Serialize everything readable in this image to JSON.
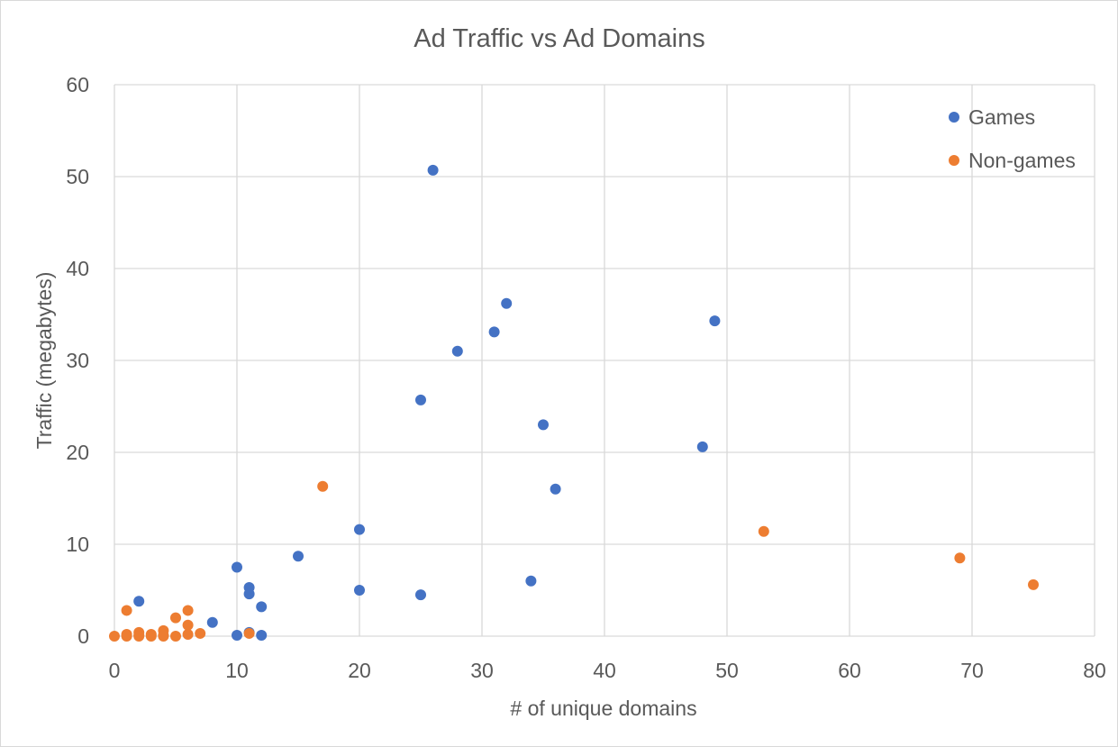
{
  "chart_data": {
    "type": "scatter",
    "title": "Ad Traffic vs Ad Domains",
    "xlabel": "# of unique domains",
    "ylabel": "Traffic (megabytes)",
    "xlim": [
      0,
      80
    ],
    "ylim": [
      0,
      60
    ],
    "x_ticks": [
      0,
      10,
      20,
      30,
      40,
      50,
      60,
      70,
      80
    ],
    "y_ticks": [
      0,
      10,
      20,
      30,
      40,
      50,
      60
    ],
    "grid": true,
    "legend_position": "top-right",
    "series": [
      {
        "name": "Games",
        "color": "#4472C4",
        "points": [
          {
            "x": 26,
            "y": 50.7
          },
          {
            "x": 32,
            "y": 36.2
          },
          {
            "x": 49,
            "y": 34.3
          },
          {
            "x": 31,
            "y": 33.1
          },
          {
            "x": 28,
            "y": 31.0
          },
          {
            "x": 25,
            "y": 25.7
          },
          {
            "x": 35,
            "y": 23.0
          },
          {
            "x": 48,
            "y": 20.6
          },
          {
            "x": 36,
            "y": 16.0
          },
          {
            "x": 20,
            "y": 11.6
          },
          {
            "x": 15,
            "y": 8.7
          },
          {
            "x": 10,
            "y": 7.5
          },
          {
            "x": 34,
            "y": 6.0
          },
          {
            "x": 11,
            "y": 5.3
          },
          {
            "x": 20,
            "y": 5.0
          },
          {
            "x": 11,
            "y": 4.6
          },
          {
            "x": 25,
            "y": 4.5
          },
          {
            "x": 2,
            "y": 3.8
          },
          {
            "x": 12,
            "y": 3.2
          },
          {
            "x": 8,
            "y": 1.5
          },
          {
            "x": 11,
            "y": 0.4
          },
          {
            "x": 10,
            "y": 0.1
          },
          {
            "x": 12,
            "y": 0.1
          }
        ]
      },
      {
        "name": "Non-games",
        "color": "#ED7D31",
        "points": [
          {
            "x": 17,
            "y": 16.3
          },
          {
            "x": 53,
            "y": 11.4
          },
          {
            "x": 69,
            "y": 8.5
          },
          {
            "x": 75,
            "y": 5.6
          },
          {
            "x": 1,
            "y": 2.8
          },
          {
            "x": 6,
            "y": 2.8
          },
          {
            "x": 5,
            "y": 2.0
          },
          {
            "x": 6,
            "y": 1.2
          },
          {
            "x": 4,
            "y": 0.6
          },
          {
            "x": 2,
            "y": 0.4
          },
          {
            "x": 11,
            "y": 0.3
          },
          {
            "x": 7,
            "y": 0.3
          },
          {
            "x": 1,
            "y": 0.2
          },
          {
            "x": 3,
            "y": 0.2
          },
          {
            "x": 6,
            "y": 0.2
          },
          {
            "x": 2,
            "y": 0.1
          },
          {
            "x": 4,
            "y": 0.1
          },
          {
            "x": 0,
            "y": 0.0
          },
          {
            "x": 1,
            "y": 0.0
          },
          {
            "x": 2,
            "y": 0.0
          },
          {
            "x": 3,
            "y": 0.0
          },
          {
            "x": 4,
            "y": 0.0
          },
          {
            "x": 5,
            "y": 0.0
          }
        ]
      }
    ]
  }
}
